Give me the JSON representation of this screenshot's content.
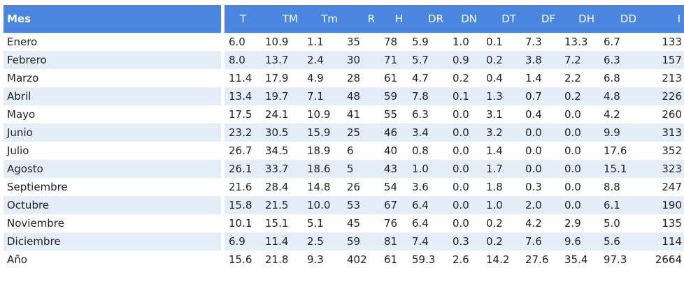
{
  "table": {
    "header_left": "Mes",
    "columns": [
      "T",
      "TM",
      "Tm",
      "R",
      "H",
      "DR",
      "DN",
      "DT",
      "DF",
      "DH",
      "DD",
      "I"
    ],
    "rows": [
      {
        "mes": "Enero",
        "values": [
          "6.0",
          "10.9",
          "1.1",
          "35",
          "78",
          "5.9",
          "1.0",
          "0.1",
          "7.3",
          "13.3",
          "6.7",
          "133"
        ]
      },
      {
        "mes": "Febrero",
        "values": [
          "8.0",
          "13.7",
          "2.4",
          "30",
          "71",
          "5.7",
          "0.9",
          "0.2",
          "3.8",
          "7.2",
          "6.3",
          "157"
        ]
      },
      {
        "mes": "Marzo",
        "values": [
          "11.4",
          "17.9",
          "4.9",
          "28",
          "61",
          "4.7",
          "0.2",
          "0.4",
          "1.4",
          "2.2",
          "6.8",
          "213"
        ]
      },
      {
        "mes": "Abril",
        "values": [
          "13.4",
          "19.7",
          "7.1",
          "48",
          "59",
          "7.8",
          "0.1",
          "1.3",
          "0.7",
          "0.2",
          "4.8",
          "226"
        ]
      },
      {
        "mes": "Mayo",
        "values": [
          "17.5",
          "24.1",
          "10.9",
          "41",
          "55",
          "6.3",
          "0.0",
          "3.1",
          "0.4",
          "0.0",
          "4.2",
          "260"
        ]
      },
      {
        "mes": "Junio",
        "values": [
          "23.2",
          "30.5",
          "15.9",
          "25",
          "46",
          "3.4",
          "0.0",
          "3.2",
          "0.0",
          "0.0",
          "9.9",
          "313"
        ]
      },
      {
        "mes": "Julio",
        "values": [
          "26.7",
          "34.5",
          "18.9",
          "6",
          "40",
          "0.8",
          "0.0",
          "1.4",
          "0.0",
          "0.0",
          "17.6",
          "352"
        ]
      },
      {
        "mes": "Agosto",
        "values": [
          "26.1",
          "33.7",
          "18.6",
          "5",
          "43",
          "1.0",
          "0.0",
          "1.7",
          "0.0",
          "0.0",
          "15.1",
          "323"
        ]
      },
      {
        "mes": "Septiembre",
        "values": [
          "21.6",
          "28.4",
          "14.8",
          "26",
          "54",
          "3.6",
          "0.0",
          "1.8",
          "0.3",
          "0.0",
          "8.8",
          "247"
        ]
      },
      {
        "mes": "Octubre",
        "values": [
          "15.8",
          "21.5",
          "10.0",
          "53",
          "67",
          "6.4",
          "0.0",
          "1.0",
          "2.0",
          "0.0",
          "6.1",
          "190"
        ]
      },
      {
        "mes": "Noviembre",
        "values": [
          "10.1",
          "15.1",
          "5.1",
          "45",
          "76",
          "6.4",
          "0.0",
          "0.2",
          "4.2",
          "2.9",
          "5.0",
          "135"
        ]
      },
      {
        "mes": "Diciembre",
        "values": [
          "6.9",
          "11.4",
          "2.5",
          "59",
          "81",
          "7.4",
          "0.3",
          "0.2",
          "7.6",
          "9.6",
          "5.6",
          "114"
        ]
      },
      {
        "mes": "Año",
        "values": [
          "15.6",
          "21.8",
          "9.3",
          "402",
          "61",
          "59.3",
          "2.6",
          "14.2",
          "27.6",
          "35.4",
          "97.3",
          "2664"
        ]
      }
    ]
  },
  "colors": {
    "header_bg": "#4a86e0",
    "header_text": "#ffffff",
    "row_shaded": "#e3eef9",
    "row_plain": "#ffffff"
  }
}
